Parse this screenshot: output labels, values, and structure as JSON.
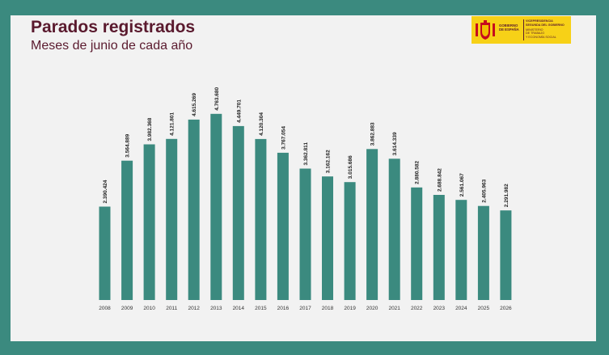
{
  "header": {
    "title": "Parados registrados",
    "subtitle": "Meses de junio de cada año"
  },
  "logo": {
    "text_left": [
      "GOBIERNO",
      "DE ESPAÑA"
    ],
    "vice_lines": [
      "VICEPRESIDENCIA",
      "SEGUNDA DEL GOBIERNO"
    ],
    "min_lines": [
      "MINISTERIO",
      "DE TRABAJO",
      "Y ECONOMÍA SOCIAL"
    ],
    "background_color": "#f7d117",
    "text_color": "#5a1a2e"
  },
  "colors": {
    "frame": "#3b8a7f",
    "panel": "#f2f2f2",
    "bar": "#3b8a7f",
    "title": "#5a1a2e"
  },
  "chart_data": {
    "type": "bar",
    "categories": [
      "2008",
      "2009",
      "2010",
      "2011",
      "2012",
      "2013",
      "2014",
      "2015",
      "2016",
      "2017",
      "2018",
      "2019",
      "2020",
      "2021",
      "2022",
      "2023",
      "2024",
      "2025",
      "2026"
    ],
    "values": [
      2390424,
      3564889,
      3982368,
      4121801,
      4615269,
      4763680,
      4449701,
      4120304,
      3767054,
      3362811,
      3162162,
      3015686,
      3862883,
      3614339,
      2880582,
      2688842,
      2561067,
      2405963,
      2291982
    ],
    "value_labels": [
      "2.390.424",
      "3.564.889",
      "3.982.368",
      "4.121.801",
      "4.615.269",
      "4.763.680",
      "4.449.701",
      "4.120.304",
      "3.767.054",
      "3.362.811",
      "3.162.162",
      "3.015.686",
      "3.862.883",
      "3.614.339",
      "2.880.582",
      "2.688.842",
      "2.561.067",
      "2.405.963",
      "2.291.982"
    ],
    "ylim": [
      0,
      4800000
    ],
    "grid": false,
    "legend": "none"
  }
}
